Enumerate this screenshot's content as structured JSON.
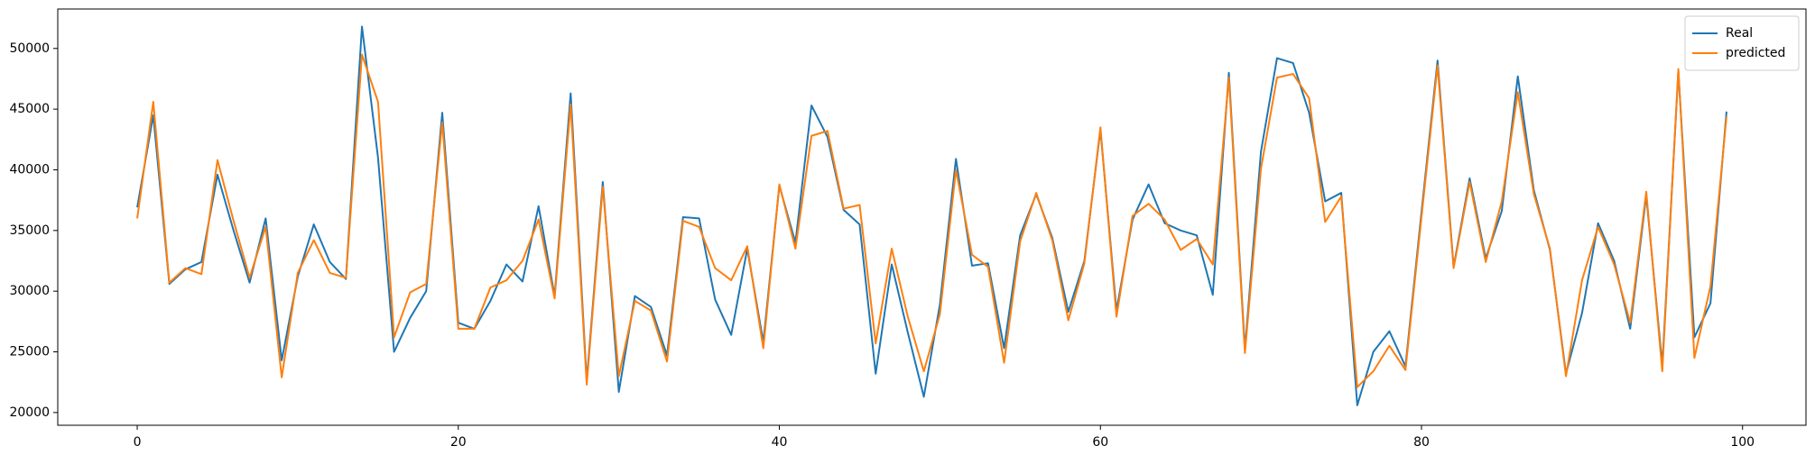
{
  "chart_data": {
    "type": "line",
    "x": [
      0,
      1,
      2,
      3,
      4,
      5,
      6,
      7,
      8,
      9,
      10,
      11,
      12,
      13,
      14,
      15,
      16,
      17,
      18,
      19,
      20,
      21,
      22,
      23,
      24,
      25,
      26,
      27,
      28,
      29,
      30,
      31,
      32,
      33,
      34,
      35,
      36,
      37,
      38,
      39,
      40,
      41,
      42,
      43,
      44,
      45,
      46,
      47,
      48,
      49,
      50,
      51,
      52,
      53,
      54,
      55,
      56,
      57,
      58,
      59,
      60,
      61,
      62,
      63,
      64,
      65,
      66,
      67,
      68,
      69,
      70,
      71,
      72,
      73,
      74,
      75,
      76,
      77,
      78,
      79,
      80,
      81,
      82,
      83,
      84,
      85,
      86,
      87,
      88,
      89,
      90,
      91,
      92,
      93,
      94,
      95,
      96,
      97,
      98,
      99
    ],
    "series": [
      {
        "name": "Real",
        "color": "#1f77b4",
        "values": [
          36900,
          44500,
          30600,
          31800,
          32400,
          39600,
          35000,
          30700,
          36000,
          24300,
          31200,
          35500,
          32400,
          31000,
          51800,
          41000,
          25000,
          27800,
          30000,
          44700,
          27400,
          26900,
          29200,
          32200,
          30800,
          37000,
          29600,
          46300,
          22600,
          39000,
          21700,
          29600,
          28700,
          24700,
          36100,
          36000,
          29300,
          26400,
          33500,
          25800,
          38700,
          34000,
          45300,
          42700,
          36700,
          35500,
          23200,
          32200,
          26600,
          21300,
          28900,
          40900,
          32100,
          32300,
          25300,
          34600,
          38000,
          34400,
          28300,
          32500,
          43300,
          28400,
          35900,
          38800,
          35600,
          35000,
          34600,
          29700,
          48000,
          25200,
          41500,
          49200,
          48800,
          44700,
          37400,
          38100,
          20600,
          25000,
          26700,
          23800,
          36500,
          49000,
          32000,
          39300,
          32700,
          36600,
          47700,
          38300,
          33400,
          23200,
          28200,
          35600,
          32500,
          26900,
          37900,
          23900,
          48100,
          26200,
          29000,
          44800
        ]
      },
      {
        "name": "predicted",
        "color": "#ff7f0e",
        "values": [
          36000,
          45600,
          30700,
          31900,
          31400,
          40800,
          35800,
          31100,
          35300,
          22900,
          31500,
          34200,
          31500,
          31100,
          49500,
          45600,
          26200,
          29900,
          30600,
          43900,
          26900,
          26900,
          30300,
          30900,
          32500,
          35900,
          29400,
          45400,
          22300,
          38600,
          23000,
          29200,
          28400,
          24200,
          35800,
          35300,
          31900,
          30900,
          33700,
          25300,
          38800,
          33500,
          42800,
          43200,
          36800,
          37100,
          25700,
          33500,
          27900,
          23400,
          28100,
          40000,
          33000,
          32000,
          24100,
          34100,
          38100,
          34200,
          27600,
          32300,
          43500,
          27900,
          36200,
          37200,
          35900,
          33400,
          34300,
          32200,
          47600,
          24900,
          40100,
          47600,
          47900,
          45900,
          35700,
          37800,
          22100,
          23400,
          25500,
          23500,
          36100,
          48600,
          31900,
          39000,
          32400,
          37400,
          46400,
          38000,
          33500,
          23000,
          30900,
          35300,
          32200,
          27400,
          38200,
          23400,
          48300,
          24500,
          30400,
          44400
        ]
      }
    ],
    "xlim": [
      -4.95,
      103.95
    ],
    "ylim": [
      18950,
      53250
    ],
    "xticks": [
      0,
      20,
      40,
      60,
      80,
      100
    ],
    "yticks": [
      20000,
      25000,
      30000,
      35000,
      40000,
      45000,
      50000
    ],
    "grid": false,
    "legend": "upper right"
  }
}
